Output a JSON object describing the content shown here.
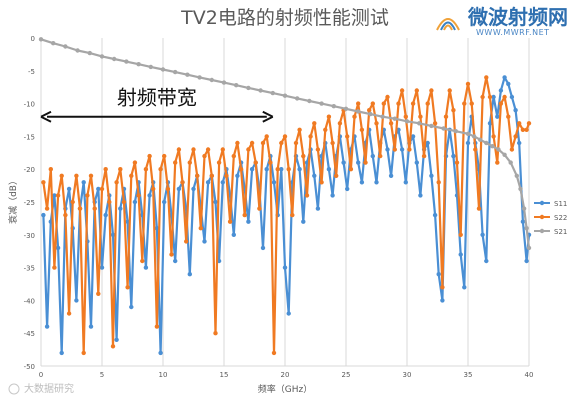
{
  "logo": {
    "cn_text": "微波射频网",
    "url_text": "WWW.MWRF.NET"
  },
  "watermark": "大数据研究",
  "chart_data": {
    "type": "line",
    "title": "TV2电路的射频性能测试",
    "xlabel": "频率（GHz）",
    "ylabel": "衰减（dB）",
    "xlim": [
      0,
      40
    ],
    "ylim": [
      -50,
      0
    ],
    "xticks": [
      0,
      5,
      10,
      15,
      20,
      25,
      30,
      35,
      40
    ],
    "yticks": [
      0,
      -5,
      -10,
      -15,
      -20,
      -25,
      -30,
      -35,
      -40,
      -45,
      -50
    ],
    "grid": "vertical",
    "legend_position": "right",
    "annotation": {
      "text": "射频带宽",
      "x_start": 0,
      "x_end": 19,
      "y": -12
    },
    "series": [
      {
        "name": "S11",
        "color": "#4a8fd4",
        "points": [
          [
            0.2,
            -27
          ],
          [
            0.5,
            -44
          ],
          [
            0.8,
            -28
          ],
          [
            1.1,
            -24
          ],
          [
            1.4,
            -32
          ],
          [
            1.7,
            -48
          ],
          [
            2.0,
            -26
          ],
          [
            2.3,
            -23
          ],
          [
            2.6,
            -29
          ],
          [
            2.9,
            -40
          ],
          [
            3.2,
            -26
          ],
          [
            3.5,
            -22
          ],
          [
            3.8,
            -31
          ],
          [
            4.1,
            -44
          ],
          [
            4.4,
            -25
          ],
          [
            4.7,
            -23
          ],
          [
            5.0,
            -35
          ],
          [
            5.3,
            -27
          ],
          [
            5.6,
            -24
          ],
          [
            5.9,
            -30
          ],
          [
            6.2,
            -46
          ],
          [
            6.5,
            -26
          ],
          [
            6.8,
            -23
          ],
          [
            7.1,
            -28
          ],
          [
            7.4,
            -41
          ],
          [
            7.7,
            -25
          ],
          [
            8.0,
            -22
          ],
          [
            8.3,
            -27
          ],
          [
            8.6,
            -35
          ],
          [
            8.9,
            -24
          ],
          [
            9.2,
            -22
          ],
          [
            9.5,
            -29
          ],
          [
            9.8,
            -48
          ],
          [
            10.1,
            -25
          ],
          [
            10.4,
            -22
          ],
          [
            10.7,
            -27
          ],
          [
            11.0,
            -34
          ],
          [
            11.3,
            -23
          ],
          [
            11.6,
            -22
          ],
          [
            11.9,
            -26
          ],
          [
            12.2,
            -36
          ],
          [
            12.5,
            -23
          ],
          [
            12.8,
            -21
          ],
          [
            13.1,
            -26
          ],
          [
            13.4,
            -31
          ],
          [
            13.7,
            -22
          ],
          [
            14.0,
            -21
          ],
          [
            14.3,
            -25
          ],
          [
            14.6,
            -34
          ],
          [
            14.9,
            -22
          ],
          [
            15.2,
            -20
          ],
          [
            15.5,
            -24
          ],
          [
            15.8,
            -30
          ],
          [
            16.1,
            -21
          ],
          [
            16.4,
            -19
          ],
          [
            16.7,
            -23
          ],
          [
            17.0,
            -28
          ],
          [
            17.3,
            -20
          ],
          [
            17.6,
            -19
          ],
          [
            17.9,
            -23
          ],
          [
            18.2,
            -32
          ],
          [
            18.5,
            -20
          ],
          [
            18.8,
            -18
          ],
          [
            19.1,
            -22
          ],
          [
            19.4,
            -27
          ],
          [
            19.7,
            -20
          ],
          [
            20.0,
            -35
          ],
          [
            20.3,
            -42
          ],
          [
            20.6,
            -22
          ],
          [
            20.9,
            -18
          ],
          [
            21.2,
            -20
          ],
          [
            21.5,
            -28
          ],
          [
            21.8,
            -19
          ],
          [
            22.1,
            -17
          ],
          [
            22.4,
            -21
          ],
          [
            22.7,
            -26
          ],
          [
            23.0,
            -18
          ],
          [
            23.3,
            -16
          ],
          [
            23.6,
            -20
          ],
          [
            23.9,
            -24
          ],
          [
            24.2,
            -18
          ],
          [
            24.5,
            -15
          ],
          [
            24.8,
            -19
          ],
          [
            25.1,
            -23
          ],
          [
            25.4,
            -17
          ],
          [
            25.7,
            -15
          ],
          [
            26.0,
            -19
          ],
          [
            26.3,
            -22
          ],
          [
            26.6,
            -16
          ],
          [
            26.9,
            -14
          ],
          [
            27.2,
            -18
          ],
          [
            27.5,
            -22
          ],
          [
            27.8,
            -16
          ],
          [
            28.1,
            -14
          ],
          [
            28.4,
            -17
          ],
          [
            28.7,
            -21
          ],
          [
            29.0,
            -15
          ],
          [
            29.3,
            -14
          ],
          [
            29.6,
            -17
          ],
          [
            29.9,
            -22
          ],
          [
            30.2,
            -16
          ],
          [
            30.5,
            -15
          ],
          [
            30.8,
            -19
          ],
          [
            31.1,
            -24
          ],
          [
            31.4,
            -17
          ],
          [
            31.7,
            -16
          ],
          [
            32.0,
            -21
          ],
          [
            32.3,
            -27
          ],
          [
            32.6,
            -36
          ],
          [
            32.9,
            -40
          ],
          [
            33.2,
            -18
          ],
          [
            33.5,
            -14
          ],
          [
            33.8,
            -18
          ],
          [
            34.1,
            -24
          ],
          [
            34.4,
            -33
          ],
          [
            34.7,
            -38
          ],
          [
            35.0,
            -16
          ],
          [
            35.3,
            -12
          ],
          [
            35.6,
            -16
          ],
          [
            35.9,
            -20
          ],
          [
            36.2,
            -30
          ],
          [
            36.5,
            -34
          ],
          [
            36.8,
            -13
          ],
          [
            37.1,
            -9
          ],
          [
            37.4,
            -12
          ],
          [
            37.7,
            -8
          ],
          [
            38.0,
            -6
          ],
          [
            38.3,
            -7
          ],
          [
            38.6,
            -9
          ],
          [
            38.9,
            -11
          ],
          [
            39.2,
            -16
          ],
          [
            39.5,
            -28
          ],
          [
            39.8,
            -34
          ],
          [
            40.0,
            -30
          ]
        ]
      },
      {
        "name": "S22",
        "color": "#f07a22",
        "points": [
          [
            0.2,
            -22
          ],
          [
            0.5,
            -26
          ],
          [
            0.8,
            -20
          ],
          [
            1.1,
            -35
          ],
          [
            1.4,
            -24
          ],
          [
            1.7,
            -21
          ],
          [
            2.0,
            -27
          ],
          [
            2.3,
            -42
          ],
          [
            2.6,
            -25
          ],
          [
            2.9,
            -21
          ],
          [
            3.2,
            -26
          ],
          [
            3.5,
            -48
          ],
          [
            3.8,
            -24
          ],
          [
            4.1,
            -21
          ],
          [
            4.4,
            -26
          ],
          [
            4.7,
            -39
          ],
          [
            5.0,
            -23
          ],
          [
            5.3,
            -20
          ],
          [
            5.6,
            -25
          ],
          [
            5.9,
            -47
          ],
          [
            6.2,
            -22
          ],
          [
            6.5,
            -20
          ],
          [
            6.8,
            -25
          ],
          [
            7.1,
            -38
          ],
          [
            7.4,
            -21
          ],
          [
            7.7,
            -19
          ],
          [
            8.0,
            -24
          ],
          [
            8.3,
            -34
          ],
          [
            8.6,
            -20
          ],
          [
            8.9,
            -18
          ],
          [
            9.2,
            -23
          ],
          [
            9.5,
            -44
          ],
          [
            9.8,
            -20
          ],
          [
            10.1,
            -18
          ],
          [
            10.4,
            -23
          ],
          [
            10.7,
            -33
          ],
          [
            11.0,
            -19
          ],
          [
            11.3,
            -17
          ],
          [
            11.6,
            -22
          ],
          [
            11.9,
            -31
          ],
          [
            12.2,
            -19
          ],
          [
            12.5,
            -17
          ],
          [
            12.8,
            -21
          ],
          [
            13.1,
            -29
          ],
          [
            13.4,
            -18
          ],
          [
            13.7,
            -17
          ],
          [
            14.0,
            -21
          ],
          [
            14.3,
            -45
          ],
          [
            14.6,
            -19
          ],
          [
            14.9,
            -17
          ],
          [
            15.2,
            -21
          ],
          [
            15.5,
            -28
          ],
          [
            15.8,
            -18
          ],
          [
            16.1,
            -16
          ],
          [
            16.4,
            -20
          ],
          [
            16.7,
            -27
          ],
          [
            17.0,
            -17
          ],
          [
            17.3,
            -16
          ],
          [
            17.6,
            -19
          ],
          [
            17.9,
            -26
          ],
          [
            18.2,
            -16
          ],
          [
            18.5,
            -15
          ],
          [
            18.8,
            -19
          ],
          [
            19.1,
            -48
          ],
          [
            19.4,
            -20
          ],
          [
            19.7,
            -16
          ],
          [
            20.0,
            -15
          ],
          [
            20.3,
            -20
          ],
          [
            20.6,
            -27
          ],
          [
            20.9,
            -16
          ],
          [
            21.2,
            -14
          ],
          [
            21.5,
            -18
          ],
          [
            21.8,
            -24
          ],
          [
            22.1,
            -15
          ],
          [
            22.4,
            -13
          ],
          [
            22.7,
            -17
          ],
          [
            23.0,
            -22
          ],
          [
            23.3,
            -14
          ],
          [
            23.6,
            -12
          ],
          [
            23.9,
            -16
          ],
          [
            24.2,
            -21
          ],
          [
            24.5,
            -13
          ],
          [
            24.8,
            -11
          ],
          [
            25.1,
            -15
          ],
          [
            25.4,
            -20
          ],
          [
            25.7,
            -12
          ],
          [
            26.0,
            -10
          ],
          [
            26.3,
            -14
          ],
          [
            26.6,
            -19
          ],
          [
            26.9,
            -11
          ],
          [
            27.2,
            -10
          ],
          [
            27.5,
            -13
          ],
          [
            27.8,
            -18
          ],
          [
            28.1,
            -10
          ],
          [
            28.4,
            -9
          ],
          [
            28.7,
            -13
          ],
          [
            29.0,
            -17
          ],
          [
            29.3,
            -10
          ],
          [
            29.6,
            -8
          ],
          [
            29.9,
            -12
          ],
          [
            30.2,
            -17
          ],
          [
            30.5,
            -10
          ],
          [
            30.8,
            -8
          ],
          [
            31.1,
            -12
          ],
          [
            31.4,
            -18
          ],
          [
            31.7,
            -10
          ],
          [
            32.0,
            -8
          ],
          [
            32.3,
            -13
          ],
          [
            32.6,
            -22
          ],
          [
            32.9,
            -38
          ],
          [
            33.2,
            -12
          ],
          [
            33.5,
            -8
          ],
          [
            33.8,
            -11
          ],
          [
            34.1,
            -19
          ],
          [
            34.4,
            -30
          ],
          [
            34.7,
            -10
          ],
          [
            35.0,
            -7
          ],
          [
            35.3,
            -10
          ],
          [
            35.6,
            -17
          ],
          [
            35.9,
            -26
          ],
          [
            36.2,
            -9
          ],
          [
            36.5,
            -6
          ],
          [
            36.8,
            -9
          ],
          [
            37.1,
            -15
          ],
          [
            37.4,
            -19
          ],
          [
            37.7,
            -10
          ],
          [
            38.0,
            -9
          ],
          [
            38.3,
            -12
          ],
          [
            38.6,
            -17
          ],
          [
            38.9,
            -15
          ],
          [
            39.2,
            -13
          ],
          [
            39.5,
            -14
          ],
          [
            39.8,
            -14
          ],
          [
            40.0,
            -13
          ]
        ]
      },
      {
        "name": "S21",
        "color": "#a6a6a6",
        "points": [
          [
            0,
            -0.2
          ],
          [
            1,
            -0.8
          ],
          [
            2,
            -1.3
          ],
          [
            3,
            -1.9
          ],
          [
            4,
            -2.3
          ],
          [
            5,
            -2.8
          ],
          [
            6,
            -3.2
          ],
          [
            7,
            -3.6
          ],
          [
            8,
            -4.0
          ],
          [
            9,
            -4.4
          ],
          [
            10,
            -4.8
          ],
          [
            11,
            -5.2
          ],
          [
            12,
            -5.6
          ],
          [
            13,
            -6.0
          ],
          [
            14,
            -6.4
          ],
          [
            15,
            -6.8
          ],
          [
            16,
            -7.2
          ],
          [
            17,
            -7.6
          ],
          [
            18,
            -8.0
          ],
          [
            19,
            -8.4
          ],
          [
            20,
            -8.8
          ],
          [
            21,
            -9.2
          ],
          [
            22,
            -9.6
          ],
          [
            23,
            -10.0
          ],
          [
            24,
            -10.4
          ],
          [
            25,
            -10.8
          ],
          [
            26,
            -11.2
          ],
          [
            27,
            -11.6
          ],
          [
            28,
            -12.0
          ],
          [
            29,
            -12.3
          ],
          [
            30,
            -12.7
          ],
          [
            31,
            -13.0
          ],
          [
            32,
            -13.4
          ],
          [
            33,
            -13.8
          ],
          [
            34,
            -14.2
          ],
          [
            35,
            -14.6
          ],
          [
            35.5,
            -15.0
          ],
          [
            36,
            -15.5
          ],
          [
            36.5,
            -16.0
          ],
          [
            37,
            -16.5
          ],
          [
            37.5,
            -17.0
          ],
          [
            38,
            -17.8
          ],
          [
            38.5,
            -19.0
          ],
          [
            39,
            -21.0
          ],
          [
            39.3,
            -23.0
          ],
          [
            39.6,
            -26.0
          ],
          [
            39.8,
            -29.0
          ],
          [
            40,
            -32.0
          ]
        ]
      }
    ]
  }
}
